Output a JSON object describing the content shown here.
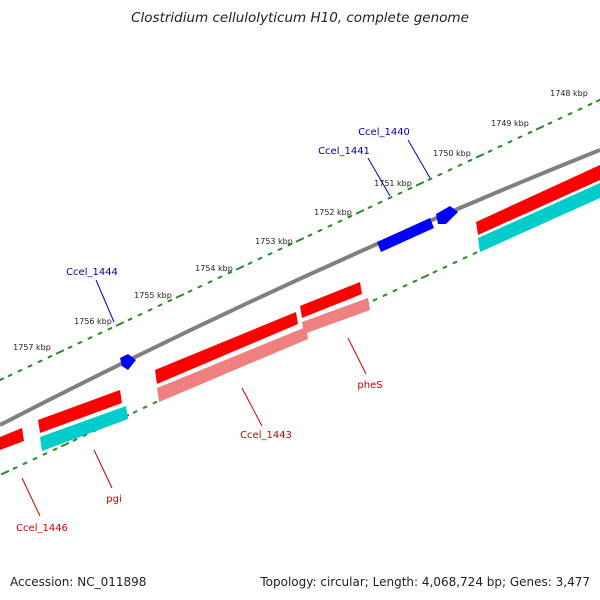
{
  "title": "Clostridium cellulolyticum H10, complete genome",
  "footer": {
    "accession": "Accession: NC_011898",
    "stats": "Topology: circular; Length: 4,068,724 bp; Genes: 3,477"
  },
  "colors": {
    "backbone": "#808080",
    "cds_forward": "#ff0000",
    "cds_reverse_shadow": "#00cccc",
    "cds_other": "#f08080",
    "plus_strand_gene": "#0000ff",
    "forward_label": "#cc0000",
    "plus_label": "#0000aa",
    "tick": "#2a8a2a"
  },
  "ticks": [
    {
      "label": "1748 kbp"
    },
    {
      "label": "1749 kbp"
    },
    {
      "label": "1750 kbp"
    },
    {
      "label": "1751 kbp"
    },
    {
      "label": "1752 kbp"
    },
    {
      "label": "1753 kbp"
    },
    {
      "label": "1754 kbp"
    },
    {
      "label": "1755 kbp"
    },
    {
      "label": "1756 kbp"
    },
    {
      "label": "1757 kbp"
    }
  ],
  "genes_plus": [
    {
      "label": "Ccel_1440"
    },
    {
      "label": "Ccel_1441"
    },
    {
      "label": "Ccel_1444"
    }
  ],
  "genes_minus": [
    {
      "label": "pheS"
    },
    {
      "label": "Ccel_1443"
    },
    {
      "label": "pgi"
    },
    {
      "label": "Ccel_1446"
    }
  ]
}
